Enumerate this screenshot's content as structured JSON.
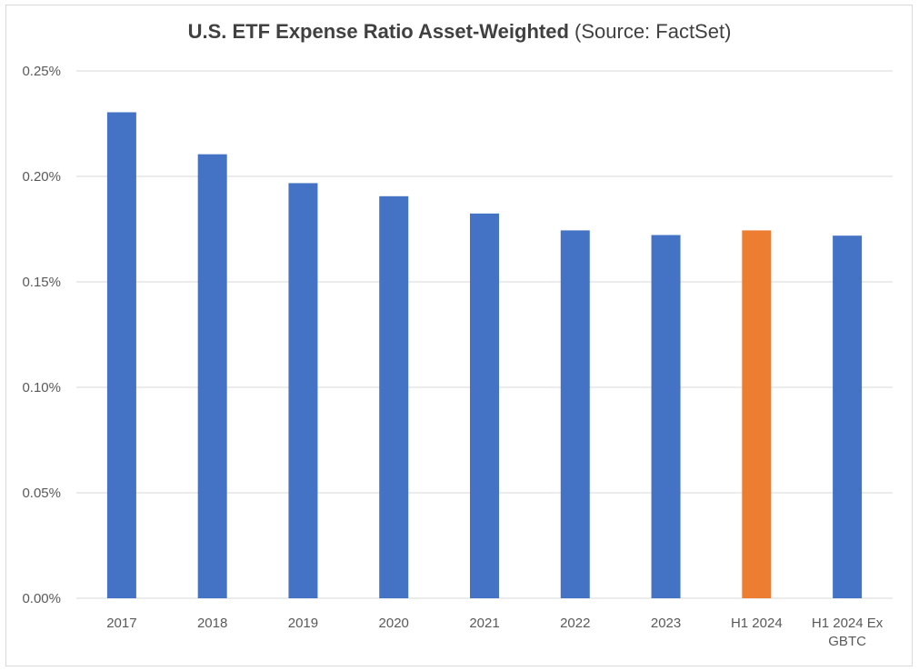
{
  "chart_data": {
    "type": "bar",
    "title": "U.S. ETF Expense Ratio Asset-Weighted",
    "subtitle": "(Source: FactSet)",
    "xlabel": "",
    "ylabel": "",
    "categories": [
      "2017",
      "2018",
      "2019",
      "2020",
      "2021",
      "2022",
      "2023",
      "H1 2024",
      "H1 2024 Ex GBTC"
    ],
    "category_lines": [
      [
        "2017"
      ],
      [
        "2018"
      ],
      [
        "2019"
      ],
      [
        "2020"
      ],
      [
        "2021"
      ],
      [
        "2022"
      ],
      [
        "2023"
      ],
      [
        "H1 2024"
      ],
      [
        "H1 2024 Ex",
        "GBTC"
      ]
    ],
    "values": [
      0.2304,
      0.2105,
      0.1968,
      0.1906,
      0.1824,
      0.1744,
      0.1722,
      0.1744,
      0.1719
    ],
    "bar_colors": [
      "#4472c4",
      "#4472c4",
      "#4472c4",
      "#4472c4",
      "#4472c4",
      "#4472c4",
      "#4472c4",
      "#ed7d31",
      "#4472c4"
    ],
    "ylim": [
      0,
      0.25
    ],
    "yticks": [
      0,
      0.05,
      0.1,
      0.15,
      0.2,
      0.25
    ],
    "ytick_labels": [
      "0.00%",
      "0.05%",
      "0.10%",
      "0.15%",
      "0.20%",
      "0.25%"
    ],
    "grid": true,
    "legend": "none",
    "colors": {
      "primary": "#4472c4",
      "highlight": "#ed7d31",
      "grid": "#d9d9d9"
    }
  }
}
